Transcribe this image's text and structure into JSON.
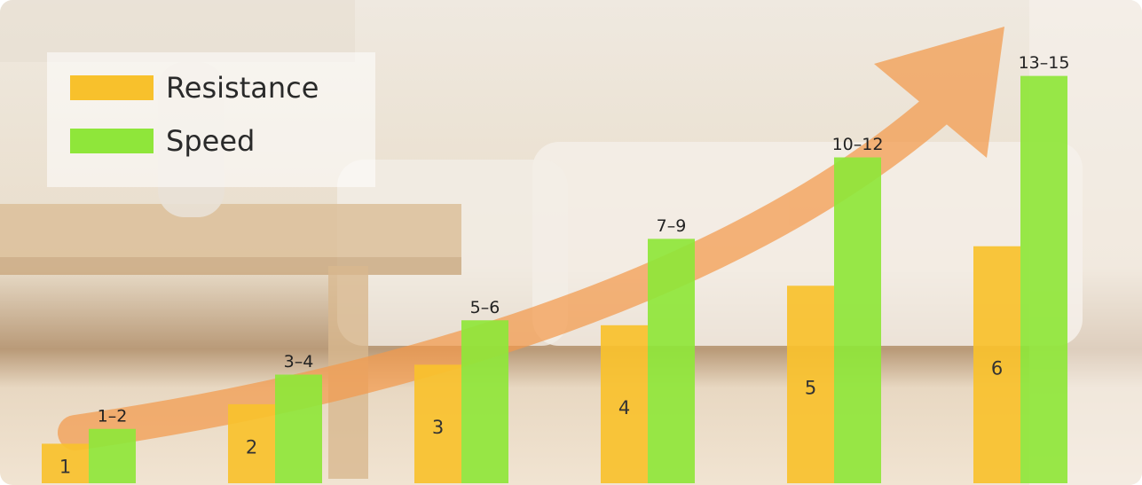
{
  "chart_data": {
    "type": "bar",
    "series": [
      {
        "name": "Resistance",
        "color": "#f8c12c",
        "values": [
          1,
          2,
          3,
          4,
          5,
          6
        ]
      },
      {
        "name": "Speed",
        "color": "#8fe63a",
        "axis": "y2",
        "values": [
          2,
          4,
          6,
          9,
          12,
          15
        ],
        "value_labels": [
          "1–2",
          "3–4",
          "5–6",
          "7–9",
          "10–12",
          "13–15"
        ]
      }
    ],
    "ylim": [
      0,
      11
    ],
    "y2lim": [
      0,
      16
    ],
    "legend": "top-left"
  }
}
